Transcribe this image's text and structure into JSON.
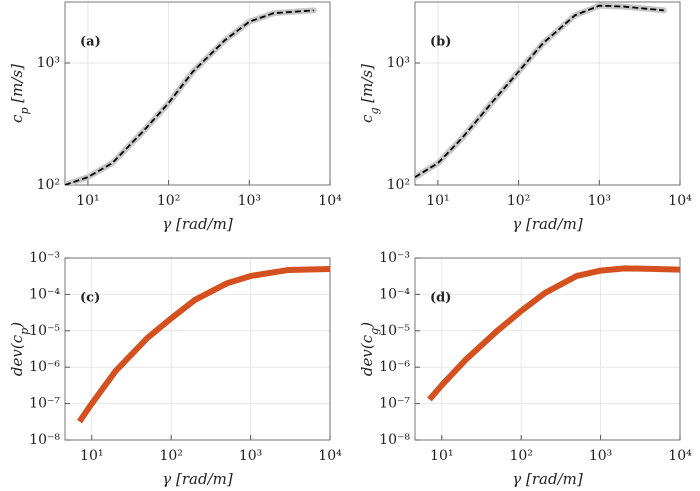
{
  "chart_data": [
    {
      "type": "line",
      "panel_label": "(a)",
      "xlabel": "γ [rad/m]",
      "ylabel": [
        "c",
        "p",
        " [m/s]"
      ],
      "xscale": "log",
      "yscale": "log",
      "grid": true,
      "color": "#000000",
      "halo_color": "#c8c8c8",
      "dashed": true,
      "xlim": [
        5.2,
        10000
      ],
      "ylim": [
        100,
        3162
      ],
      "xticks": [
        {
          "value": 10,
          "label": "10¹"
        },
        {
          "value": 100,
          "label": "10²"
        },
        {
          "value": 1000,
          "label": "10³"
        },
        {
          "value": 10000,
          "label": "10⁴"
        }
      ],
      "yticks": [
        {
          "value": 100,
          "label": "10²"
        },
        {
          "value": 1000,
          "label": "10³"
        }
      ],
      "x": [
        5.2,
        10,
        20,
        50,
        100,
        200,
        500,
        1000,
        2000,
        6300
      ],
      "values": [
        100,
        116,
        151,
        282,
        470,
        850,
        1540,
        2180,
        2560,
        2700
      ]
    },
    {
      "type": "line",
      "panel_label": "(b)",
      "xlabel": "γ [rad/m]",
      "ylabel": [
        "c",
        "g",
        " [m/s]"
      ],
      "xscale": "log",
      "yscale": "log",
      "grid": true,
      "color": "#000000",
      "halo_color": "#c8c8c8",
      "dashed": true,
      "xlim": [
        5.2,
        10000
      ],
      "ylim": [
        100,
        3162
      ],
      "xticks": [
        {
          "value": 10,
          "label": "10¹"
        },
        {
          "value": 100,
          "label": "10²"
        },
        {
          "value": 1000,
          "label": "10³"
        },
        {
          "value": 10000,
          "label": "10⁴"
        }
      ],
      "yticks": [
        {
          "value": 100,
          "label": "10²"
        },
        {
          "value": 1000,
          "label": "10³"
        }
      ],
      "x": [
        5.2,
        10,
        20,
        50,
        100,
        200,
        500,
        1000,
        2000,
        6300
      ],
      "values": [
        116,
        151,
        243,
        500,
        850,
        1450,
        2460,
        2950,
        2900,
        2700
      ]
    },
    {
      "type": "line",
      "panel_label": "(c)",
      "xlabel": "γ [rad/m]",
      "ylabel": [
        "dev(c",
        "p",
        ")"
      ],
      "xscale": "log",
      "yscale": "log",
      "grid": true,
      "color": "#d4501e",
      "dashed": false,
      "xlim": [
        4.6,
        10000
      ],
      "ylim": [
        1e-08,
        0.001
      ],
      "xticks": [
        {
          "value": 10,
          "label": "10¹"
        },
        {
          "value": 100,
          "label": "10²"
        },
        {
          "value": 1000,
          "label": "10³"
        },
        {
          "value": 10000,
          "label": "10⁴"
        }
      ],
      "yticks": [
        {
          "value": 1e-08,
          "label": "10⁻⁸"
        },
        {
          "value": 1e-07,
          "label": "10⁻⁷"
        },
        {
          "value": 1e-06,
          "label": "10⁻⁶"
        },
        {
          "value": 1e-05,
          "label": "10⁻⁵"
        },
        {
          "value": 0.0001,
          "label": "10⁻⁴"
        },
        {
          "value": 0.001,
          "label": "10⁻³"
        }
      ],
      "x": [
        7,
        10,
        20,
        50,
        100,
        200,
        500,
        1000,
        3000,
        10000
      ],
      "values": [
        3.2e-08,
        1e-07,
        7.9e-07,
        6.3e-06,
        2.2e-05,
        7.1e-05,
        0.0002,
        0.00032,
        0.00047,
        0.0005
      ]
    },
    {
      "type": "line",
      "panel_label": "(d)",
      "xlabel": "γ [rad/m]",
      "ylabel": [
        "dev(c",
        "g",
        ")"
      ],
      "xscale": "log",
      "yscale": "log",
      "grid": true,
      "color": "#d4501e",
      "dashed": false,
      "xlim": [
        4.6,
        10000
      ],
      "ylim": [
        1e-08,
        0.001
      ],
      "xticks": [
        {
          "value": 10,
          "label": "10¹"
        },
        {
          "value": 100,
          "label": "10²"
        },
        {
          "value": 1000,
          "label": "10³"
        },
        {
          "value": 10000,
          "label": "10⁴"
        }
      ],
      "yticks": [
        {
          "value": 1e-08,
          "label": "10⁻⁸"
        },
        {
          "value": 1e-07,
          "label": "10⁻⁷"
        },
        {
          "value": 1e-06,
          "label": "10⁻⁶"
        },
        {
          "value": 1e-05,
          "label": "10⁻⁵"
        },
        {
          "value": 0.0001,
          "label": "10⁻⁴"
        },
        {
          "value": 0.001,
          "label": "10⁻³"
        }
      ],
      "x": [
        7,
        10,
        20,
        50,
        100,
        200,
        500,
        1000,
        2000,
        5000,
        10000
      ],
      "values": [
        1.3e-07,
        3.2e-07,
        1.6e-06,
        1e-05,
        3.5e-05,
        0.00011,
        0.00032,
        0.00045,
        0.00052,
        0.0005,
        0.00048
      ]
    }
  ]
}
